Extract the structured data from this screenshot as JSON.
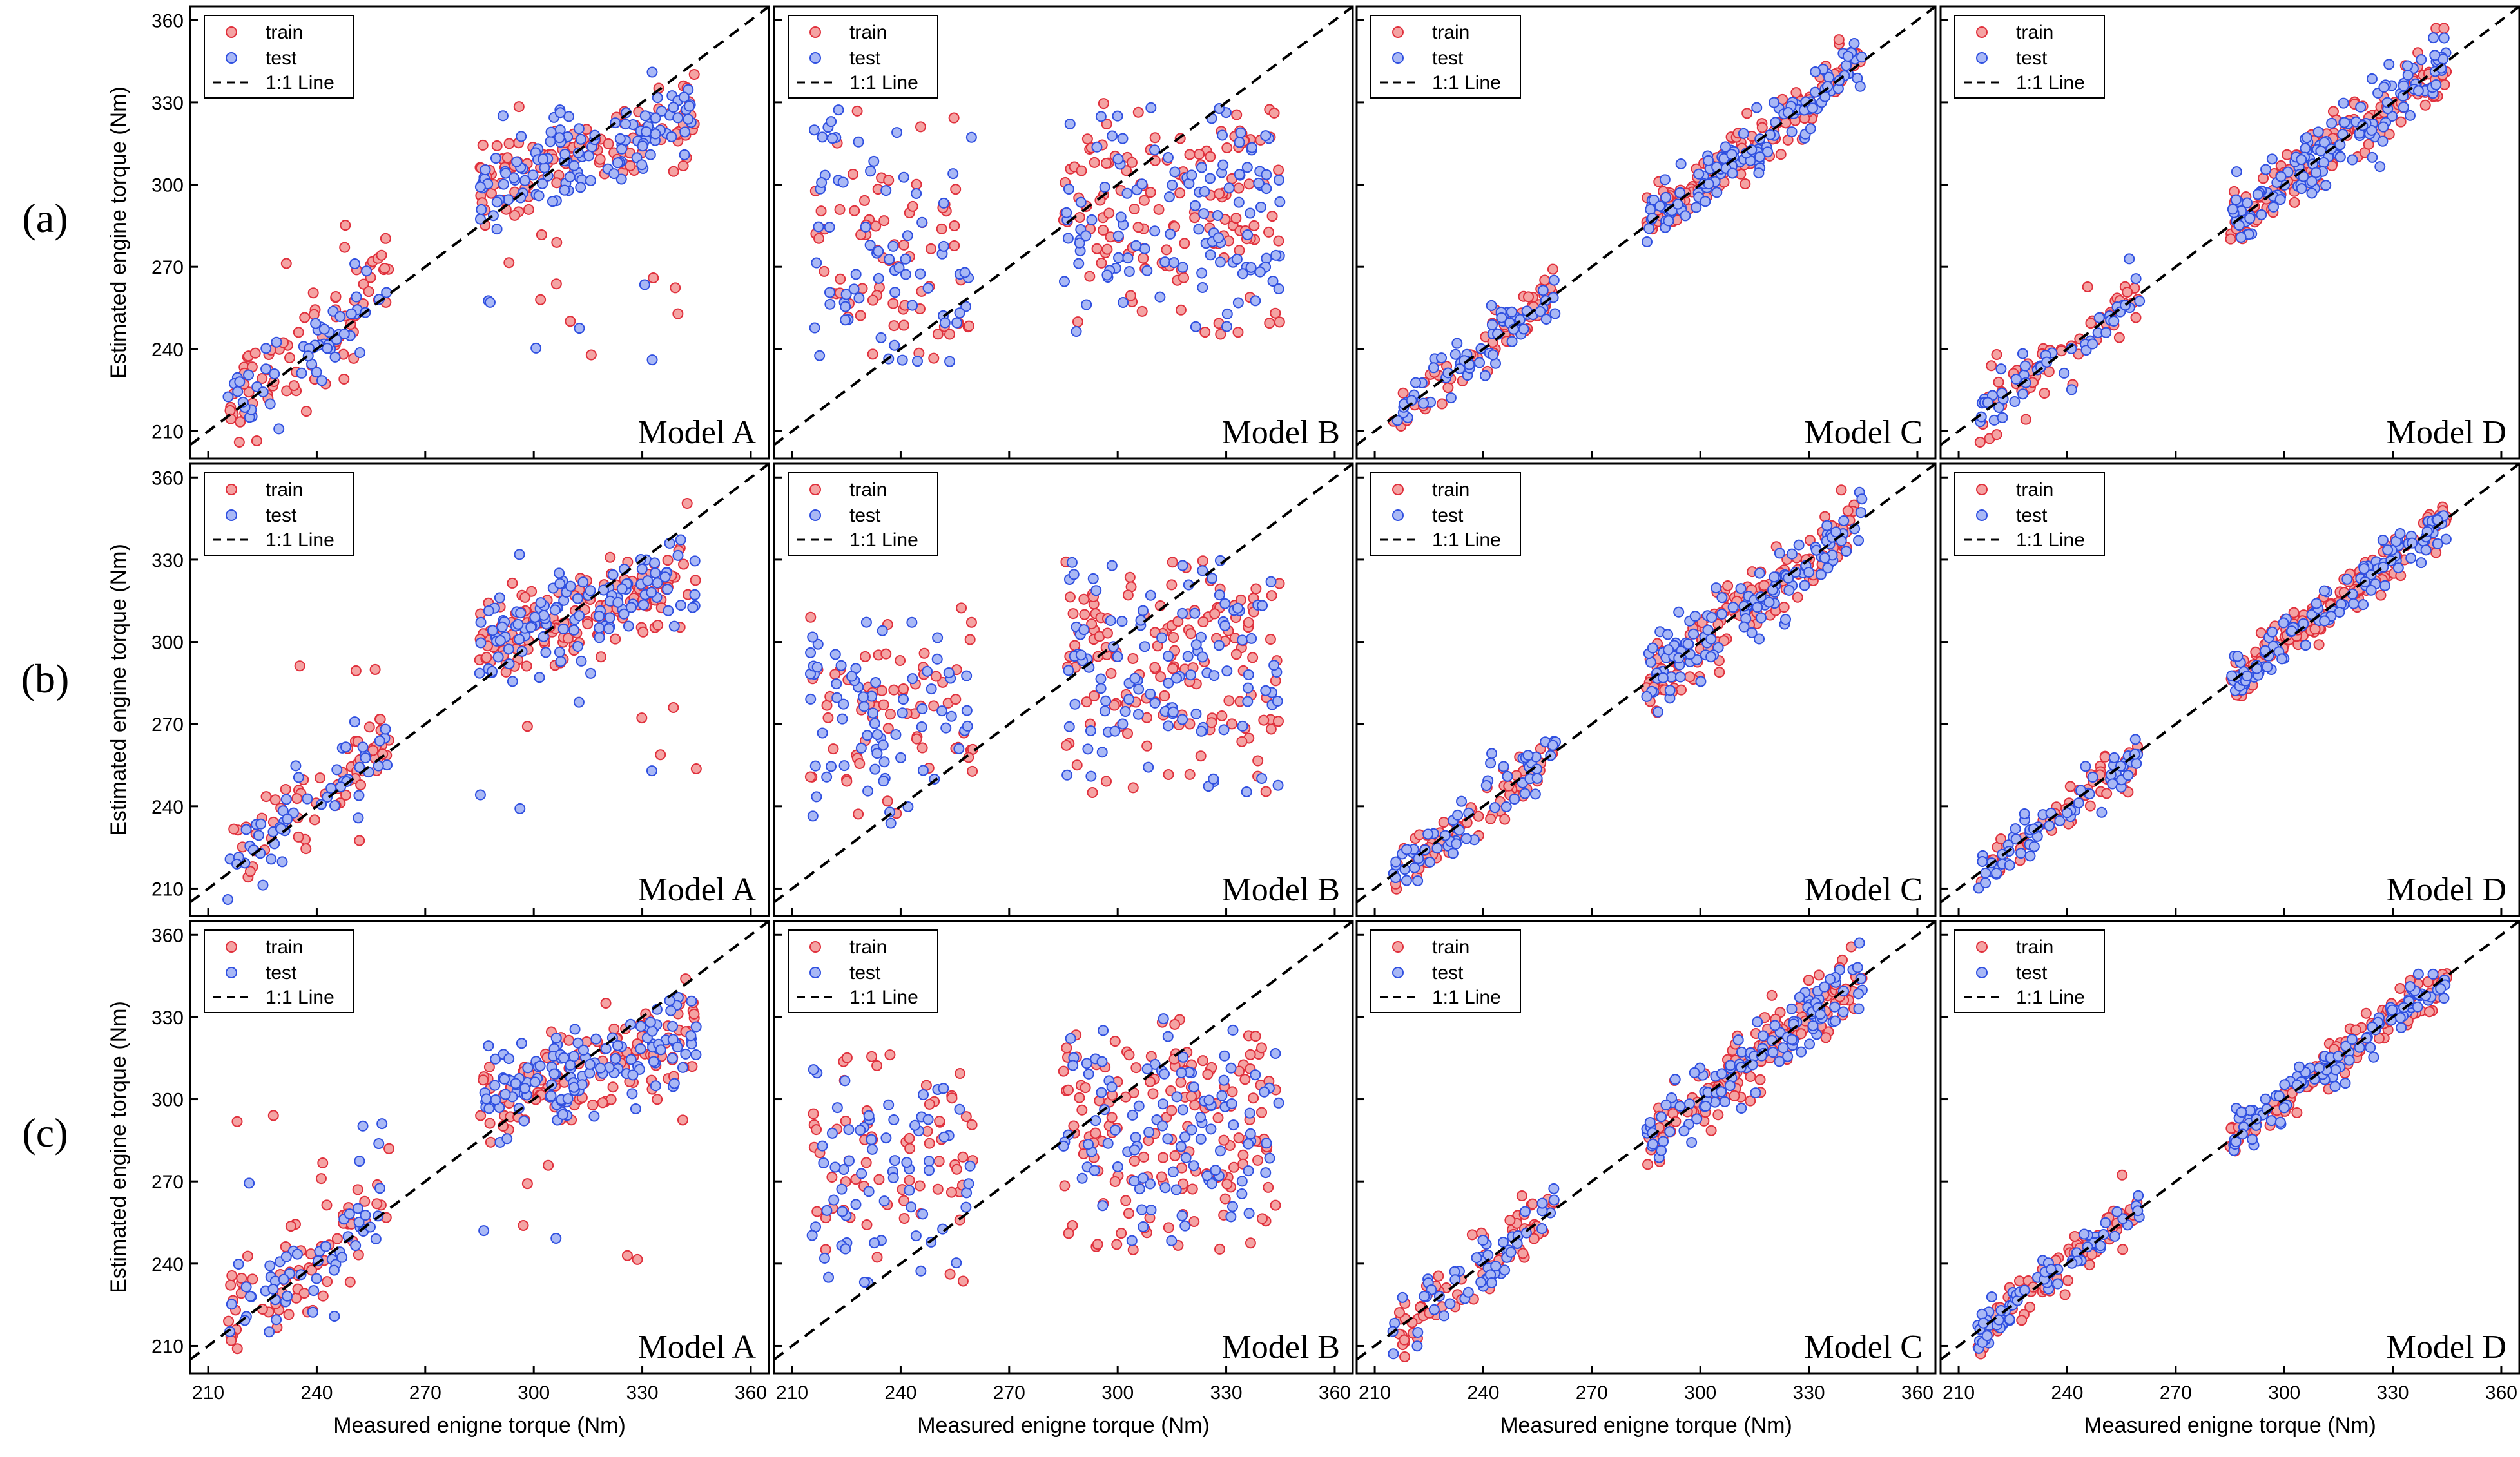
{
  "figure": {
    "row_labels": [
      "(a)",
      "(b)",
      "(c)"
    ],
    "ylabel": "Estimated engine torque (Nm)",
    "xlabel": "Measured enigne torque (Nm)",
    "model_labels": [
      "Model A",
      "Model B",
      "Model C",
      "Model D"
    ],
    "legend": {
      "train": "train",
      "test": "test",
      "line": "1:1 Line"
    },
    "ticks": [
      "210",
      "240",
      "270",
      "300",
      "330",
      "360"
    ],
    "colors": {
      "train_fill": "#f4a3a3",
      "train_edge": "#e0303c",
      "test_fill": "#a9b8f5",
      "test_edge": "#2f4fe0",
      "axis": "#000000",
      "line": "#000000"
    }
  },
  "chart_data": [
    {
      "type": "scatter",
      "row": "(a)",
      "model": "Model A",
      "xlim": [
        205,
        365
      ],
      "ylim": [
        200,
        365
      ],
      "quality": "moderate",
      "series": [
        {
          "name": "train",
          "approx_points": 220
        },
        {
          "name": "test",
          "approx_points": 180
        },
        {
          "name": "1:1 Line",
          "x": [
            205,
            365
          ],
          "y": [
            205,
            365
          ]
        }
      ]
    },
    {
      "type": "scatter",
      "row": "(a)",
      "model": "Model B",
      "xlim": [
        205,
        365
      ],
      "ylim": [
        200,
        365
      ],
      "quality": "poor",
      "series": [
        {
          "name": "train",
          "approx_points": 220
        },
        {
          "name": "test",
          "approx_points": 180
        },
        {
          "name": "1:1 Line",
          "x": [
            205,
            365
          ],
          "y": [
            205,
            365
          ]
        }
      ]
    },
    {
      "type": "scatter",
      "row": "(a)",
      "model": "Model C",
      "xlim": [
        205,
        365
      ],
      "ylim": [
        200,
        365
      ],
      "quality": "good",
      "series": [
        {
          "name": "train",
          "approx_points": 220
        },
        {
          "name": "test",
          "approx_points": 180
        },
        {
          "name": "1:1 Line",
          "x": [
            205,
            365
          ],
          "y": [
            205,
            365
          ]
        }
      ]
    },
    {
      "type": "scatter",
      "row": "(a)",
      "model": "Model D",
      "xlim": [
        205,
        365
      ],
      "ylim": [
        200,
        365
      ],
      "quality": "good",
      "series": [
        {
          "name": "train",
          "approx_points": 220
        },
        {
          "name": "test",
          "approx_points": 180
        },
        {
          "name": "1:1 Line",
          "x": [
            205,
            365
          ],
          "y": [
            205,
            365
          ]
        }
      ]
    },
    {
      "type": "scatter",
      "row": "(b)",
      "model": "Model A",
      "xlim": [
        205,
        365
      ],
      "ylim": [
        200,
        365
      ],
      "quality": "moderate",
      "series": [
        {
          "name": "train",
          "approx_points": 220
        },
        {
          "name": "test",
          "approx_points": 180
        },
        {
          "name": "1:1 Line",
          "x": [
            205,
            365
          ],
          "y": [
            205,
            365
          ]
        }
      ]
    },
    {
      "type": "scatter",
      "row": "(b)",
      "model": "Model B",
      "xlim": [
        205,
        365
      ],
      "ylim": [
        200,
        365
      ],
      "quality": "poor",
      "series": [
        {
          "name": "train",
          "approx_points": 220
        },
        {
          "name": "test",
          "approx_points": 180
        },
        {
          "name": "1:1 Line",
          "x": [
            205,
            365
          ],
          "y": [
            205,
            365
          ]
        }
      ]
    },
    {
      "type": "scatter",
      "row": "(b)",
      "model": "Model C",
      "xlim": [
        205,
        365
      ],
      "ylim": [
        200,
        365
      ],
      "quality": "good",
      "series": [
        {
          "name": "train",
          "approx_points": 220
        },
        {
          "name": "test",
          "approx_points": 180
        },
        {
          "name": "1:1 Line",
          "x": [
            205,
            365
          ],
          "y": [
            205,
            365
          ]
        }
      ]
    },
    {
      "type": "scatter",
      "row": "(b)",
      "model": "Model D",
      "xlim": [
        205,
        365
      ],
      "ylim": [
        200,
        365
      ],
      "quality": "excellent",
      "series": [
        {
          "name": "train",
          "approx_points": 220
        },
        {
          "name": "test",
          "approx_points": 180
        },
        {
          "name": "1:1 Line",
          "x": [
            205,
            365
          ],
          "y": [
            205,
            365
          ]
        }
      ]
    },
    {
      "type": "scatter",
      "row": "(c)",
      "model": "Model A",
      "xlim": [
        205,
        365
      ],
      "ylim": [
        200,
        365
      ],
      "quality": "moderate",
      "series": [
        {
          "name": "train",
          "approx_points": 220
        },
        {
          "name": "test",
          "approx_points": 180
        },
        {
          "name": "1:1 Line",
          "x": [
            205,
            365
          ],
          "y": [
            205,
            365
          ]
        }
      ]
    },
    {
      "type": "scatter",
      "row": "(c)",
      "model": "Model B",
      "xlim": [
        205,
        365
      ],
      "ylim": [
        200,
        365
      ],
      "quality": "poor",
      "series": [
        {
          "name": "train",
          "approx_points": 220
        },
        {
          "name": "test",
          "approx_points": 180
        },
        {
          "name": "1:1 Line",
          "x": [
            205,
            365
          ],
          "y": [
            205,
            365
          ]
        }
      ]
    },
    {
      "type": "scatter",
      "row": "(c)",
      "model": "Model C",
      "xlim": [
        205,
        365
      ],
      "ylim": [
        200,
        365
      ],
      "quality": "good",
      "series": [
        {
          "name": "train",
          "approx_points": 220
        },
        {
          "name": "test",
          "approx_points": 180
        },
        {
          "name": "1:1 Line",
          "x": [
            205,
            365
          ],
          "y": [
            205,
            365
          ]
        }
      ]
    },
    {
      "type": "scatter",
      "row": "(c)",
      "model": "Model D",
      "xlim": [
        205,
        365
      ],
      "ylim": [
        200,
        365
      ],
      "quality": "excellent",
      "series": [
        {
          "name": "train",
          "approx_points": 220
        },
        {
          "name": "test",
          "approx_points": 180
        },
        {
          "name": "1:1 Line",
          "x": [
            205,
            365
          ],
          "y": [
            205,
            365
          ]
        }
      ]
    }
  ]
}
